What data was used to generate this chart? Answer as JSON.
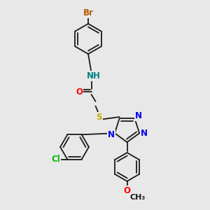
{
  "background_color": "#e8e8e8",
  "bond_color": "#1a1a1a",
  "atom_colors": {
    "Br": "#b35a00",
    "N": "#0000ee",
    "H": "#008080",
    "O": "#ff0000",
    "S": "#ccaa00",
    "Cl": "#00bb00",
    "C": "#1a1a1a"
  },
  "figsize": [
    3.0,
    3.0
  ],
  "dpi": 100,
  "fs": 8.5
}
